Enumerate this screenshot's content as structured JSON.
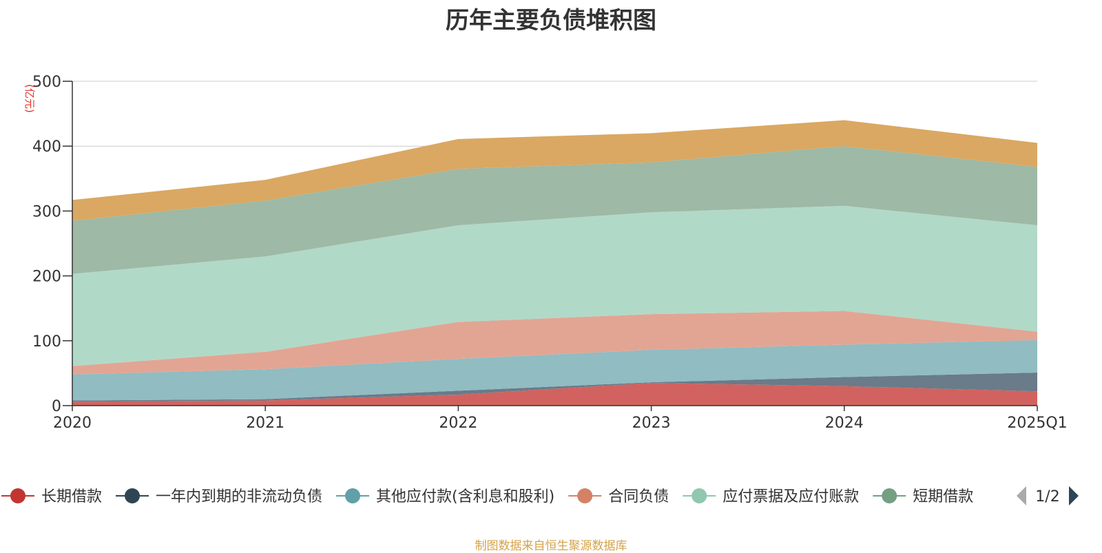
{
  "chart_data": {
    "type": "area",
    "stacked": true,
    "title": "历年主要负债堆积图",
    "unit_label": "(亿元)",
    "categories": [
      "2020",
      "2021",
      "2022",
      "2023",
      "2024",
      "2025Q1"
    ],
    "y_ticks": [
      "0",
      "100",
      "200",
      "300",
      "400",
      "500"
    ],
    "ylim": [
      0,
      500
    ],
    "grid": true,
    "legend_position": "bottom",
    "legend_page": "1/2",
    "series": [
      {
        "name": "长期借款",
        "color": "#d2625f",
        "legend_color": "#c23531",
        "values": [
          6,
          8,
          17,
          35,
          30,
          22
        ]
      },
      {
        "name": "一年内到期的非流动负债",
        "color": "#6a7b89",
        "legend_color": "#2f4554",
        "values": [
          2,
          2,
          6,
          1,
          14,
          29
        ]
      },
      {
        "name": "其他应付款(含利息和股利)",
        "color": "#90bcc2",
        "legend_color": "#61a0a8",
        "values": [
          40,
          46,
          49,
          50,
          50,
          50
        ]
      },
      {
        "name": "合同负债",
        "color": "#e2a593",
        "legend_color": "#d48265",
        "values": [
          13,
          27,
          57,
          55,
          52,
          13
        ]
      },
      {
        "name": "应付票据及应付账款",
        "color": "#b1d9c8",
        "legend_color": "#91c7ae",
        "values": [
          142,
          147,
          149,
          157,
          162,
          164
        ]
      },
      {
        "name": "短期借款",
        "color": "#9eb9a5",
        "legend_color": "#749f83",
        "values": [
          82,
          86,
          87,
          77,
          92,
          90
        ]
      },
      {
        "name": "",
        "color": "#daa862",
        "values": [
          32,
          32,
          46,
          45,
          40,
          37
        ]
      }
    ]
  },
  "source_note": "制图数据来自恒生聚源数据库"
}
